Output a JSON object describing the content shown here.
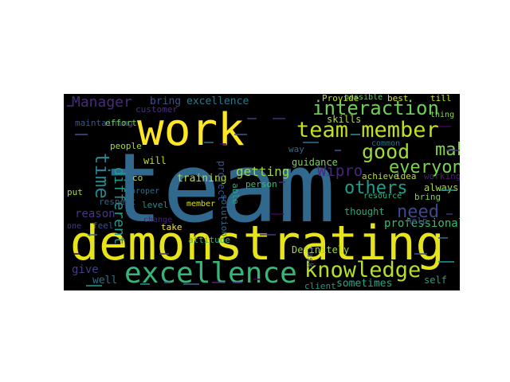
{
  "wordcloud": {
    "background": "#000000",
    "words": [
      {
        "text": "team",
        "color": "#31688e",
        "rotated": false
      },
      {
        "text": "demonstrating",
        "color": "#e7e419",
        "rotated": false
      },
      {
        "text": "work",
        "color": "#fde725",
        "rotated": false
      },
      {
        "text": "excellence",
        "color": "#35b779",
        "rotated": false
      },
      {
        "text": "knowledge",
        "color": "#b5de2b",
        "rotated": false
      },
      {
        "text": "team member",
        "color": "#c2df23",
        "rotated": false
      },
      {
        "text": "interaction",
        "color": "#6ece58",
        "rotated": false
      },
      {
        "text": "good",
        "color": "#a0da39",
        "rotated": false
      },
      {
        "text": "make",
        "color": "#84d44b",
        "rotated": false
      },
      {
        "text": "everyone",
        "color": "#7ad151",
        "rotated": false
      },
      {
        "text": "others",
        "color": "#1f9e89",
        "rotated": false
      },
      {
        "text": "need",
        "color": "#3e4989",
        "rotated": false
      },
      {
        "text": "Wipro",
        "color": "#482878",
        "rotated": false
      },
      {
        "text": "time",
        "color": "#26828e",
        "rotated": true
      },
      {
        "text": "different",
        "color": "#1f988b",
        "rotated": true
      },
      {
        "text": "Manager",
        "color": "#472c7a",
        "rotated": false
      },
      {
        "text": "bring",
        "color": "#3b528b",
        "rotated": false
      },
      {
        "text": "excellence",
        "color": "#2a788e",
        "rotated": false
      },
      {
        "text": "training",
        "color": "#b5de2b",
        "rotated": false
      },
      {
        "text": "getting",
        "color": "#9fda3a",
        "rotated": false
      },
      {
        "text": "professional",
        "color": "#3aba76",
        "rotated": false
      },
      {
        "text": "thought",
        "color": "#25ab82",
        "rotated": false
      },
      {
        "text": "give",
        "color": "#433e85",
        "rotated": false
      },
      {
        "text": "well",
        "color": "#2c728e",
        "rotated": false
      },
      {
        "text": "sometimes",
        "color": "#22a884",
        "rotated": false
      },
      {
        "text": "reason",
        "color": "#453781",
        "rotated": false
      },
      {
        "text": "customer",
        "color": "#46307e",
        "rotated": false
      },
      {
        "text": "maintaining",
        "color": "#3b528b",
        "rotated": false
      },
      {
        "text": "effort",
        "color": "#70cf57",
        "rotated": false
      },
      {
        "text": "respect",
        "color": "#31688e",
        "rotated": false
      },
      {
        "text": "people",
        "color": "#a2da37",
        "rotated": false
      },
      {
        "text": "will",
        "color": "#b8de29",
        "rotated": false
      },
      {
        "text": "level",
        "color": "#21918c",
        "rotated": false
      },
      {
        "text": "member",
        "color": "#dde318",
        "rotated": false
      },
      {
        "text": "take",
        "color": "#fde725",
        "rotated": false
      },
      {
        "text": "attitude",
        "color": "#35b779",
        "rotated": false
      },
      {
        "text": "feel",
        "color": "#3b528b",
        "rotated": false
      },
      {
        "text": "change",
        "color": "#482475",
        "rotated": false
      },
      {
        "text": "proper",
        "color": "#2d708e",
        "rotated": false
      },
      {
        "text": "co",
        "color": "#c8e020",
        "rotated": false
      },
      {
        "text": "put",
        "color": "#a5db36",
        "rotated": false
      },
      {
        "text": "one",
        "color": "#433e85",
        "rotated": false
      },
      {
        "text": "guidance",
        "color": "#7ad151",
        "rotated": false
      },
      {
        "text": "person",
        "color": "#3dbc74",
        "rotated": false
      },
      {
        "text": "Definitely",
        "color": "#9fda3a",
        "rotated": false
      },
      {
        "text": "client",
        "color": "#1f9a8a",
        "rotated": false
      },
      {
        "text": "self",
        "color": "#20a386",
        "rotated": false
      },
      {
        "text": "always",
        "color": "#addc30",
        "rotated": false
      },
      {
        "text": "bring",
        "color": "#7fd34e",
        "rotated": false
      },
      {
        "text": "resource",
        "color": "#35b779",
        "rotated": false
      },
      {
        "text": "achieve",
        "color": "#b8de29",
        "rotated": false
      },
      {
        "text": "idea",
        "color": "#bddf26",
        "rotated": false
      },
      {
        "text": "working",
        "color": "#482071",
        "rotated": false
      },
      {
        "text": "possible",
        "color": "#5ec962",
        "rotated": false
      },
      {
        "text": "skills",
        "color": "#a8db34",
        "rotated": false
      },
      {
        "text": "best",
        "color": "#d8e219",
        "rotated": false
      },
      {
        "text": "Provide",
        "color": "#c5e021",
        "rotated": false
      },
      {
        "text": "common",
        "color": "#2c728e",
        "rotated": false
      },
      {
        "text": "thing",
        "color": "#8bd646",
        "rotated": false
      },
      {
        "text": "way",
        "color": "#31688e",
        "rotated": false
      },
      {
        "text": "able",
        "color": "#25ab82",
        "rotated": true
      },
      {
        "text": "project",
        "color": "#3b528b",
        "rotated": true
      },
      {
        "text": "solution",
        "color": "#2d708e",
        "rotated": true
      },
      {
        "text": "task",
        "color": "#3b528b",
        "rotated": true
      },
      {
        "text": "help",
        "color": "#3b528b",
        "rotated": false
      },
      {
        "text": "till",
        "color": "#c8e020",
        "rotated": false
      }
    ]
  }
}
